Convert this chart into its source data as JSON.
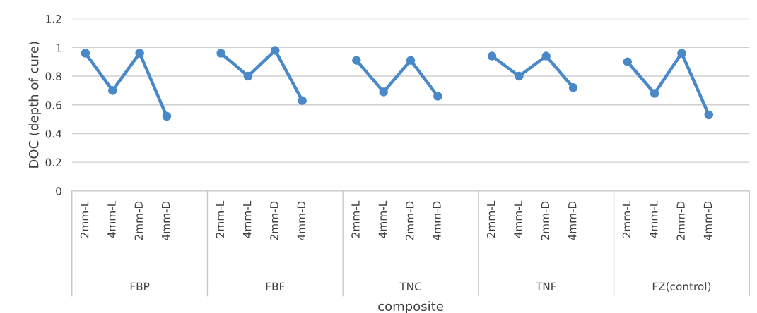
{
  "chart_data": {
    "type": "line",
    "xlabel": "composite",
    "ylabel": "DOC (depth of cure)",
    "categories": [
      "2mm-L",
      "4mm-L",
      "2mm-D",
      "4mm-D",
      "2mm-L",
      "4mm-L",
      "2mm-D",
      "4mm-D",
      "2mm-L",
      "4mm-L",
      "2mm-D",
      "4mm-D",
      "2mm-L",
      "4mm-L",
      "2mm-D",
      "4mm-D",
      "2mm-L",
      "4mm-L",
      "2mm-D",
      "4mm-D"
    ],
    "annotations": [
      "FBP",
      "FBF",
      "TNC",
      "TNF",
      "FZ(control)"
    ],
    "series": [
      {
        "color": "#4a89c8",
        "values": [
          0.96,
          0.7,
          0.96,
          0.52,
          null,
          null,
          null,
          null,
          null,
          null,
          null,
          null,
          null,
          null,
          null,
          null,
          null,
          null,
          null,
          null
        ]
      },
      {
        "color": "#4a89c8",
        "values": [
          null,
          null,
          null,
          null,
          0.96,
          0.8,
          0.98,
          0.63,
          null,
          null,
          null,
          null,
          null,
          null,
          null,
          null,
          null,
          null,
          null,
          null
        ]
      },
      {
        "color": "#4a89c8",
        "values": [
          null,
          null,
          null,
          null,
          null,
          null,
          null,
          null,
          0.91,
          0.69,
          0.91,
          0.66,
          null,
          null,
          null,
          null,
          null,
          null,
          null,
          null
        ]
      },
      {
        "color": "#4a89c8",
        "values": [
          null,
          null,
          null,
          null,
          null,
          null,
          null,
          null,
          null,
          null,
          null,
          null,
          0.94,
          0.8,
          0.94,
          0.72,
          null,
          null,
          null,
          null
        ]
      },
      {
        "color": "#4a89c8",
        "values": [
          null,
          null,
          null,
          null,
          null,
          null,
          null,
          null,
          null,
          null,
          null,
          null,
          null,
          null,
          null,
          null,
          0.9,
          0.68,
          0.96,
          0.53
        ]
      }
    ],
    "ylim": [
      0,
      1.2
    ],
    "yticks": [
      0,
      0.2,
      0.4,
      0.6,
      0.8,
      1,
      1.2
    ],
    "grid": "y",
    "marker": "circle",
    "line_style": "solid",
    "legend": false
  }
}
